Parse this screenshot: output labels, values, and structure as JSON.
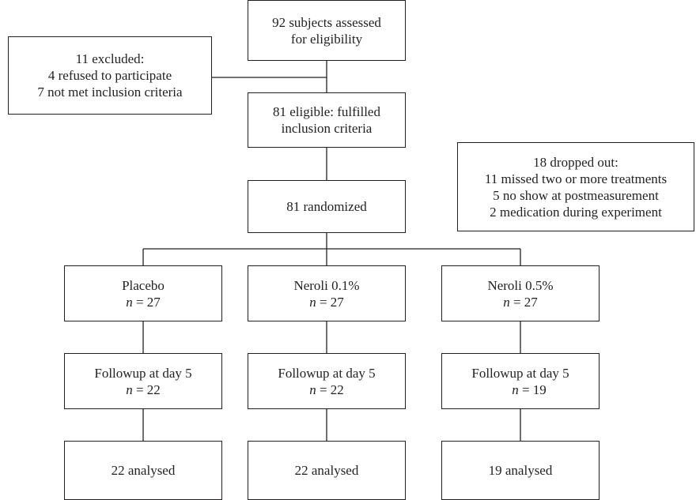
{
  "screening": {
    "lines": [
      "92 subjects assessed",
      "for eligibility"
    ]
  },
  "excluded": {
    "lines": [
      "11 excluded:",
      "4 refused to participate",
      "7 not met inclusion criteria"
    ]
  },
  "eligible": {
    "lines": [
      "81 eligible: fulfilled",
      "inclusion criteria"
    ]
  },
  "randomized": {
    "lines": [
      "81 randomized"
    ]
  },
  "dropped": {
    "lines": [
      "18 dropped out:",
      "11 missed two or more treatments",
      "5 no show at postmeasurement",
      "2 medication during experiment"
    ]
  },
  "arms": [
    {
      "allocation": {
        "label": "Placebo",
        "n_var": "n",
        "n_text": " = 27"
      },
      "followup": {
        "label": "Followup at day 5",
        "n_var": "n",
        "n_text": " = 22"
      },
      "analysed": {
        "label": "22 analysed"
      }
    },
    {
      "allocation": {
        "label": "Neroli 0.1%",
        "n_var": "n",
        "n_text": " = 27"
      },
      "followup": {
        "label": "Followup at day 5",
        "n_var": "n",
        "n_text": " = 22"
      },
      "analysed": {
        "label": "22 analysed"
      }
    },
    {
      "allocation": {
        "label": "Neroli 0.5%",
        "n_var": "n",
        "n_text": " = 27"
      },
      "followup": {
        "label": "Followup at day 5",
        "n_var": "n",
        "n_text": " = 19"
      },
      "analysed": {
        "label": "19 analysed"
      }
    }
  ]
}
